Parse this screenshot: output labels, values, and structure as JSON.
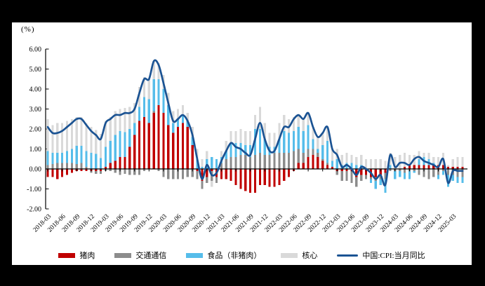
{
  "chart_data": {
    "type": "bar+line",
    "title": "",
    "unit_label": "(%)",
    "legend_position": "bottom",
    "grid": false,
    "ylim": [
      -2,
      6
    ],
    "y_ticks": [
      "6.00",
      "5.00",
      "4.00",
      "3.00",
      "2.00",
      "1.00",
      "0.00",
      "-1.00",
      "-2.00"
    ],
    "x_tick_labels": [
      "2018-03",
      "2018-06",
      "2018-09",
      "2018-12",
      "2019-03",
      "2019-06",
      "2019-09",
      "2019-12",
      "2020-03",
      "2020-06",
      "2020-09",
      "2020-12",
      "2021-03",
      "2021-06",
      "2021-09",
      "2021-12",
      "2022-03",
      "2022-06",
      "2022-09",
      "2022-12",
      "2023-03",
      "2023-06",
      "2023-09",
      "2023-12",
      "2024-03",
      "2024-06",
      "2024-09",
      "2024-12",
      "2025-03"
    ],
    "x": [
      "2018-03",
      "2018-04",
      "2018-05",
      "2018-06",
      "2018-07",
      "2018-08",
      "2018-09",
      "2018-10",
      "2018-11",
      "2018-12",
      "2019-01",
      "2019-02",
      "2019-03",
      "2019-04",
      "2019-05",
      "2019-06",
      "2019-07",
      "2019-08",
      "2019-09",
      "2019-10",
      "2019-11",
      "2019-12",
      "2020-01",
      "2020-02",
      "2020-03",
      "2020-04",
      "2020-05",
      "2020-06",
      "2020-07",
      "2020-08",
      "2020-09",
      "2020-10",
      "2020-11",
      "2020-12",
      "2021-01",
      "2021-02",
      "2021-03",
      "2021-04",
      "2021-05",
      "2021-06",
      "2021-07",
      "2021-08",
      "2021-09",
      "2021-10",
      "2021-11",
      "2021-12",
      "2022-01",
      "2022-02",
      "2022-03",
      "2022-04",
      "2022-05",
      "2022-06",
      "2022-07",
      "2022-08",
      "2022-09",
      "2022-10",
      "2022-11",
      "2022-12",
      "2023-01",
      "2023-02",
      "2023-03",
      "2023-04",
      "2023-05",
      "2023-06",
      "2023-07",
      "2023-08",
      "2023-09",
      "2023-10",
      "2023-11",
      "2023-12",
      "2024-01",
      "2024-02",
      "2024-03",
      "2024-04",
      "2024-05",
      "2024-06",
      "2024-07",
      "2024-08",
      "2024-09",
      "2024-10",
      "2024-11",
      "2024-12",
      "2025-01",
      "2025-02",
      "2025-03",
      "2025-04",
      "2025-05"
    ],
    "series": [
      {
        "name": "猪肉",
        "type": "bar",
        "color": "#C00000",
        "values": [
          -0.4,
          -0.4,
          -0.5,
          -0.4,
          -0.3,
          -0.2,
          -0.1,
          -0.1,
          -0.1,
          -0.1,
          -0.1,
          -0.1,
          0.1,
          0.3,
          0.4,
          0.6,
          0.6,
          1.1,
          1.7,
          2.4,
          2.6,
          2.3,
          2.8,
          3.2,
          2.8,
          2.2,
          1.8,
          2.1,
          2.3,
          2.1,
          1.2,
          -0.1,
          -0.6,
          -0.4,
          -0.1,
          -0.4,
          -0.5,
          -0.5,
          -0.6,
          -0.8,
          -1.0,
          -1.1,
          -1.2,
          -1.2,
          -0.8,
          -0.8,
          -0.9,
          -0.9,
          -0.8,
          -0.6,
          -0.4,
          -0.1,
          0.3,
          0.3,
          0.6,
          0.7,
          0.6,
          0.4,
          0.2,
          0.1,
          -0.1,
          -0.1,
          -0.1,
          -0.1,
          -0.4,
          -0.3,
          -0.3,
          -0.4,
          -0.4,
          -0.3,
          -0.2,
          0.0,
          0.0,
          0.0,
          0.1,
          0.2,
          0.2,
          0.2,
          0.2,
          0.2,
          0.2,
          0.2,
          0.2,
          0.1,
          0.1,
          0.1,
          0.1
        ]
      },
      {
        "name": "交通通信",
        "type": "bar",
        "color": "#8C8C8C",
        "values": [
          0.2,
          0.25,
          0.3,
          0.3,
          0.3,
          0.3,
          0.25,
          0.3,
          0.1,
          -0.1,
          -0.15,
          -0.15,
          -0.1,
          -0.1,
          -0.2,
          -0.3,
          -0.25,
          -0.3,
          -0.3,
          -0.3,
          -0.1,
          0.0,
          0.1,
          -0.1,
          -0.4,
          -0.5,
          -0.5,
          -0.5,
          -0.5,
          -0.4,
          -0.4,
          -0.4,
          -0.4,
          -0.3,
          -0.5,
          -0.3,
          0.3,
          0.5,
          0.6,
          0.6,
          0.7,
          0.7,
          0.6,
          0.7,
          0.8,
          0.7,
          0.7,
          0.8,
          0.8,
          0.8,
          0.8,
          0.9,
          0.7,
          0.5,
          0.4,
          0.3,
          0.2,
          0.1,
          0.1,
          0.0,
          -0.2,
          -0.5,
          -0.5,
          -0.6,
          -0.5,
          -0.3,
          -0.2,
          -0.1,
          -0.2,
          -0.2,
          -0.3,
          -0.1,
          -0.1,
          -0.1,
          -0.2,
          -0.1,
          -0.1,
          -0.3,
          -0.4,
          -0.5,
          -0.4,
          -0.3,
          -0.1,
          -0.3,
          -0.3,
          -0.4,
          -0.4
        ]
      },
      {
        "name": "食品（非猪肉）",
        "type": "bar",
        "color": "#56BDEA",
        "values": [
          0.7,
          0.55,
          0.5,
          0.5,
          0.6,
          0.7,
          0.9,
          0.85,
          0.8,
          0.8,
          0.75,
          0.55,
          1.0,
          1.1,
          1.3,
          1.3,
          1.25,
          0.9,
          0.6,
          0.7,
          1.0,
          1.2,
          1.6,
          1.3,
          1.2,
          1.0,
          0.5,
          0.4,
          0.4,
          0.3,
          0.4,
          0.5,
          0.1,
          0.5,
          0.6,
          0.5,
          0.3,
          0.4,
          0.7,
          0.7,
          0.6,
          0.5,
          0.6,
          1.3,
          1.2,
          0.8,
          0.4,
          0.3,
          0.7,
          1.1,
          1.0,
          1.0,
          1.1,
          1.1,
          1.2,
          0.5,
          0.2,
          0.7,
          1.1,
          0.3,
          0.5,
          0.2,
          0.3,
          0.3,
          0.2,
          0.2,
          0.0,
          -0.2,
          -0.4,
          -0.3,
          -0.7,
          0.2,
          -0.4,
          -0.3,
          -0.3,
          -0.4,
          -0.1,
          0.3,
          0.4,
          0.3,
          0.1,
          -0.2,
          -0.2,
          -0.6,
          -0.3,
          -0.3,
          -0.3
        ]
      },
      {
        "name": "核心",
        "type": "bar",
        "color": "#D9D9D9",
        "values": [
          1.6,
          1.4,
          1.5,
          1.5,
          1.5,
          1.5,
          1.45,
          1.45,
          1.4,
          1.3,
          1.2,
          1.2,
          1.3,
          1.2,
          1.2,
          1.1,
          1.2,
          1.1,
          1.0,
          1.0,
          1.0,
          1.0,
          0.9,
          0.8,
          0.7,
          0.6,
          0.6,
          0.5,
          0.5,
          0.4,
          0.5,
          0.5,
          0.4,
          0.4,
          -0.3,
          0.0,
          0.3,
          0.5,
          0.6,
          0.6,
          0.7,
          0.7,
          0.7,
          0.7,
          1.1,
          0.8,
          0.7,
          0.7,
          0.8,
          0.8,
          0.7,
          0.7,
          0.6,
          0.6,
          0.6,
          0.6,
          0.6,
          0.6,
          0.7,
          0.6,
          0.5,
          0.5,
          0.5,
          0.4,
          0.4,
          0.5,
          0.5,
          0.5,
          0.5,
          0.5,
          0.4,
          0.6,
          0.6,
          0.7,
          0.7,
          0.5,
          0.5,
          0.4,
          0.2,
          0.3,
          0.3,
          0.4,
          0.6,
          0.1,
          0.4,
          0.5,
          0.5
        ]
      },
      {
        "name": "中国:CPI:当月同比",
        "type": "line",
        "color": "#1B5393",
        "values": [
          2.1,
          1.8,
          1.8,
          1.9,
          2.1,
          2.3,
          2.5,
          2.5,
          2.2,
          1.9,
          1.7,
          1.5,
          2.3,
          2.5,
          2.7,
          2.7,
          2.8,
          2.8,
          3.0,
          3.8,
          4.5,
          4.5,
          5.4,
          5.2,
          4.3,
          3.3,
          2.4,
          2.5,
          2.7,
          2.4,
          1.7,
          0.5,
          -0.5,
          0.2,
          -0.3,
          -0.2,
          0.4,
          0.9,
          1.3,
          1.1,
          1.0,
          0.8,
          0.7,
          1.5,
          2.3,
          1.5,
          0.9,
          0.9,
          1.5,
          2.1,
          2.1,
          2.5,
          2.7,
          2.5,
          2.8,
          2.1,
          1.6,
          1.8,
          2.1,
          1.0,
          0.7,
          0.1,
          0.2,
          0.0,
          -0.3,
          0.1,
          0.0,
          -0.2,
          -0.5,
          -0.3,
          -0.8,
          0.7,
          0.1,
          0.3,
          0.3,
          0.2,
          0.5,
          0.6,
          0.4,
          0.3,
          0.2,
          0.1,
          0.5,
          -0.7,
          -0.1,
          -0.1,
          -0.1
        ]
      }
    ]
  }
}
